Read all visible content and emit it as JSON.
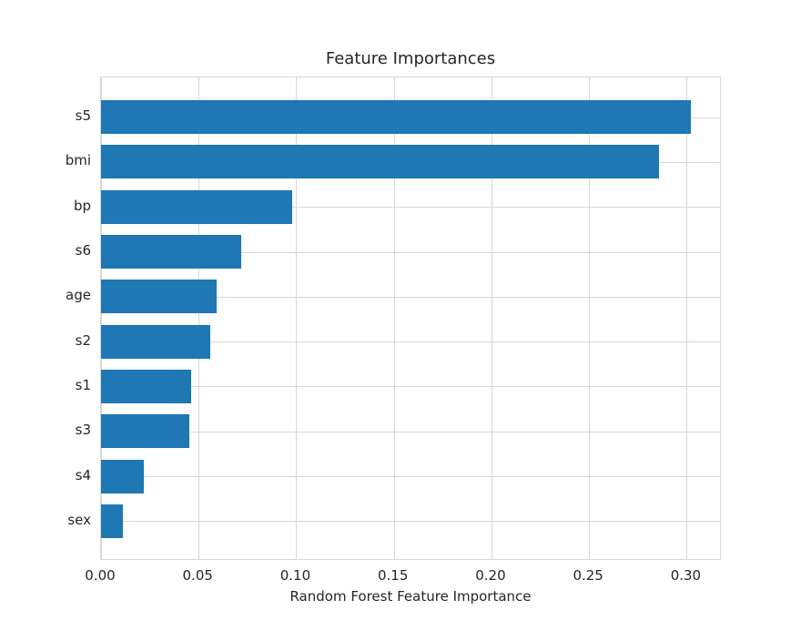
{
  "figure": {
    "background": "#ffffff"
  },
  "chart_data": {
    "type": "bar",
    "orientation": "horizontal",
    "title": "Feature Importances",
    "xlabel": "Random Forest Feature Importance",
    "ylabel": "",
    "categories": [
      "s5",
      "bmi",
      "bp",
      "s6",
      "age",
      "s2",
      "s1",
      "s3",
      "s4",
      "sex"
    ],
    "values": [
      0.302,
      0.286,
      0.098,
      0.072,
      0.059,
      0.056,
      0.046,
      0.045,
      0.022,
      0.011
    ],
    "xlim": [
      0,
      0.318
    ],
    "xticks": [
      0,
      0.05,
      0.1,
      0.15,
      0.2,
      0.25,
      0.3
    ],
    "xtick_labels": [
      "0.00",
      "0.05",
      "0.10",
      "0.15",
      "0.20",
      "0.25",
      "0.30"
    ],
    "grid": true,
    "legend": false,
    "colors": {
      "bar": "#1f77b4",
      "grid": "#d8d8d8",
      "spine": "#d8d8d8",
      "text": "#262626"
    }
  }
}
